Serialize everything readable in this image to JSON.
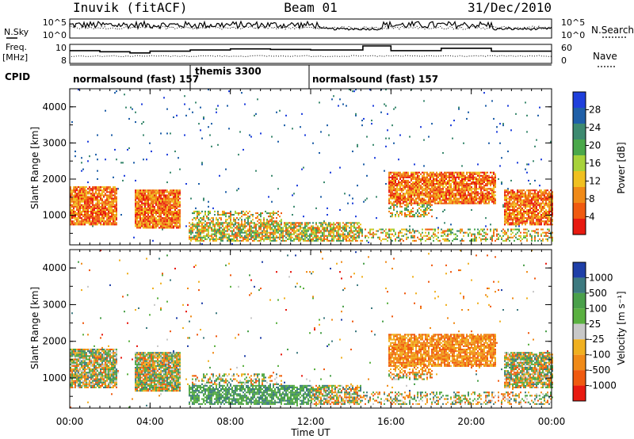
{
  "header": {
    "station": "Inuvik (fitACF)",
    "beam": "Beam 01",
    "date": "31/Dec/2010"
  },
  "left_labels": {
    "nsky": "N.Sky",
    "freq_line1": "Freq.",
    "freq_line2": "[MHz]",
    "cpid": "CPID"
  },
  "right_labels": {
    "nsearch": "N.Search",
    "nave": "Nave"
  },
  "nsky_ticks": [
    "10^5",
    "10^0"
  ],
  "nsearch_ticks": [
    "10^5",
    "10^0"
  ],
  "freq_ticks": [
    "10",
    "8"
  ],
  "nave_ticks": [
    "60",
    "0"
  ],
  "cpid_segments": [
    {
      "label": "normalsound (fast) 157",
      "start_hour": 0
    },
    {
      "label": "themis 3300",
      "start_hour": 6
    },
    {
      "label": "normalsound (fast) 157",
      "start_hour": 12
    }
  ],
  "colors": {
    "power": [
      "#1f3fdc",
      "#1f5fa8",
      "#3d8a70",
      "#4aa84a",
      "#a8d23a",
      "#f0c020",
      "#f08a18",
      "#f05a10",
      "#e81a10"
    ],
    "velocity": [
      "#1f3fa8",
      "#3d7a80",
      "#4aa04a",
      "#5ab040",
      "#c8c8c8",
      "#f0b020",
      "#f08a18",
      "#f05a10",
      "#e81a10"
    ]
  },
  "chart_data": [
    {
      "type": "heatmap",
      "panel": "power",
      "xlabel": "",
      "ylabel": "Slant Range [km]",
      "xlim": [
        0,
        24
      ],
      "ylim": [
        180,
        4500
      ],
      "yticks": [
        "1000",
        "2000",
        "3000",
        "4000"
      ],
      "colorbar_label": "Power [dB]",
      "colorbar_ticks": [
        "4",
        "8",
        "12",
        "16",
        "20",
        "24",
        "28"
      ],
      "clim": [
        0,
        30
      ]
    },
    {
      "type": "heatmap",
      "panel": "velocity",
      "xlabel": "Time UT",
      "ylabel": "Slant Range [km]",
      "xlim": [
        0,
        24
      ],
      "ylim": [
        180,
        4500
      ],
      "xticks": [
        "00:00",
        "04:00",
        "08:00",
        "12:00",
        "16:00",
        "20:00",
        "00:00"
      ],
      "yticks": [
        "1000",
        "2000",
        "3000",
        "4000"
      ],
      "colorbar_label": "Velocity [m s⁻¹]",
      "colorbar_ticks": [
        "1000",
        "500",
        "100",
        "25",
        "-25",
        "-100",
        "-500",
        "-1000"
      ]
    }
  ]
}
